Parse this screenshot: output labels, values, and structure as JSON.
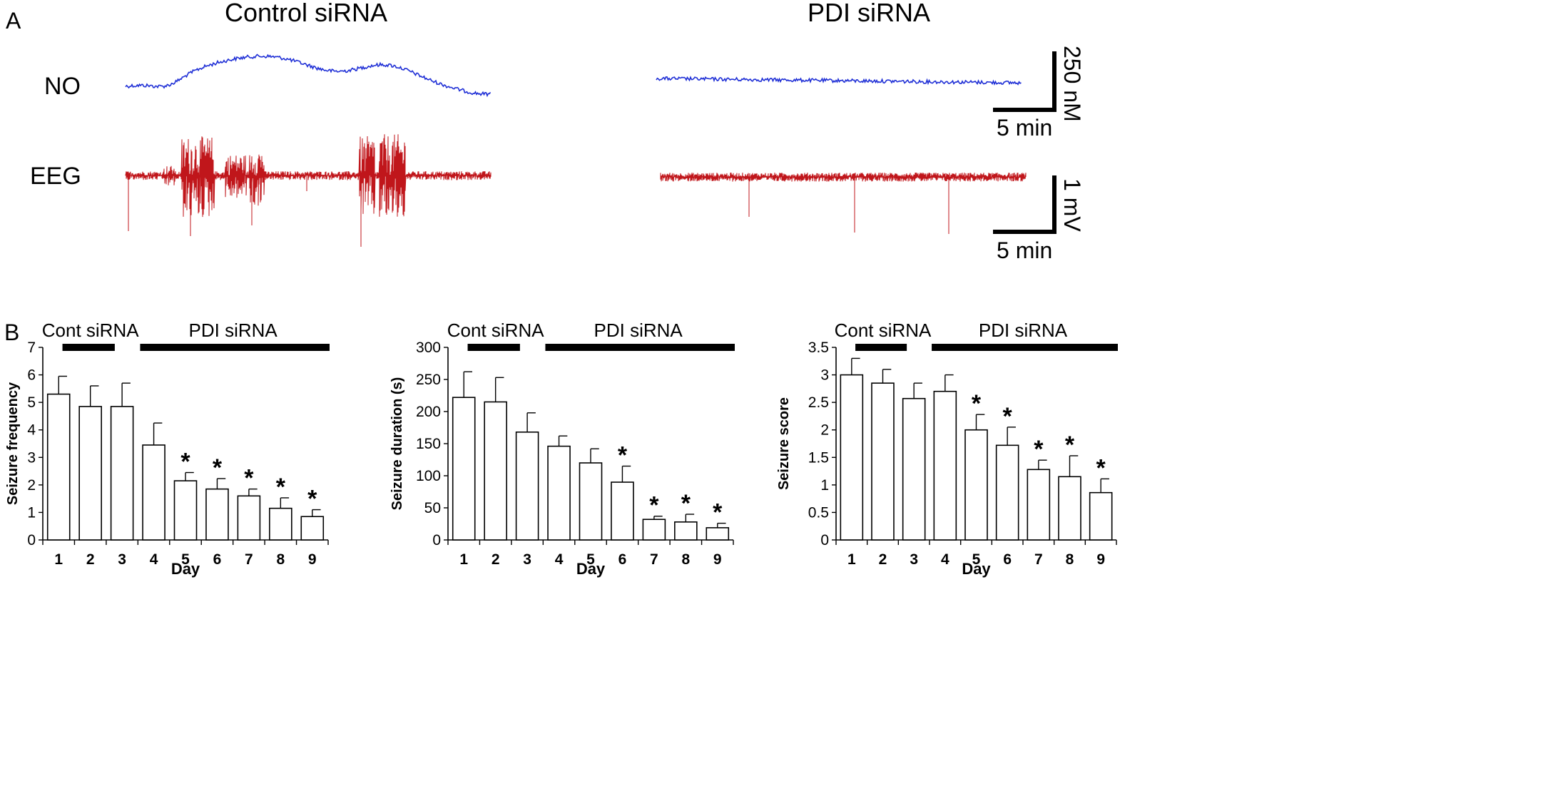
{
  "panelA": {
    "label": "A",
    "control_title": "Control siRNA",
    "pdi_title": "PDI siRNA",
    "row_no": "NO",
    "row_eeg": "EEG",
    "scale_no_y": "250 nM",
    "scale_no_x": "5 min",
    "scale_eeg_y": "1 mV",
    "scale_eeg_x": "5 min",
    "colors": {
      "no_trace": "#1f2fd6",
      "eeg_trace": "#c0161b"
    }
  },
  "panelB": {
    "label": "B",
    "cont_label": "Cont siRNA",
    "pdi_label": "PDI siRNA"
  },
  "chart_data": [
    {
      "type": "bar",
      "title": "",
      "xlabel": "Day",
      "ylabel": "Seizure frequency",
      "categories": [
        "1",
        "2",
        "3",
        "4",
        "5",
        "6",
        "7",
        "8",
        "9"
      ],
      "values": [
        5.3,
        4.85,
        4.85,
        3.45,
        2.15,
        1.85,
        1.6,
        1.15,
        0.85
      ],
      "errors": [
        0.65,
        0.75,
        0.85,
        0.8,
        0.3,
        0.38,
        0.25,
        0.38,
        0.25
      ],
      "significant": [
        false,
        false,
        false,
        false,
        true,
        true,
        true,
        true,
        true
      ],
      "ylim": [
        0,
        7
      ],
      "yticks": [
        "0",
        "1",
        "2",
        "3",
        "4",
        "5",
        "6",
        "7"
      ],
      "star": "*"
    },
    {
      "type": "bar",
      "title": "",
      "xlabel": "Day",
      "ylabel": "Seizure duration (s)",
      "categories": [
        "1",
        "2",
        "3",
        "4",
        "5",
        "6",
        "7",
        "8",
        "9"
      ],
      "values": [
        222,
        215,
        168,
        146,
        120,
        90,
        32,
        28,
        19
      ],
      "errors": [
        40,
        38,
        30,
        16,
        22,
        25,
        5,
        12,
        7
      ],
      "significant": [
        false,
        false,
        false,
        false,
        false,
        true,
        true,
        true,
        true
      ],
      "ylim": [
        0,
        300
      ],
      "yticks": [
        "0",
        "50",
        "100",
        "150",
        "200",
        "250",
        "300"
      ],
      "star": "*"
    },
    {
      "type": "bar",
      "title": "",
      "xlabel": "Day",
      "ylabel": "Seizure score",
      "categories": [
        "1",
        "2",
        "3",
        "4",
        "5",
        "6",
        "7",
        "8",
        "9"
      ],
      "values": [
        3.0,
        2.85,
        2.57,
        2.7,
        2.0,
        1.72,
        1.28,
        1.15,
        0.86
      ],
      "errors": [
        0.3,
        0.25,
        0.28,
        0.3,
        0.28,
        0.33,
        0.17,
        0.38,
        0.25
      ],
      "significant": [
        false,
        false,
        false,
        false,
        true,
        true,
        true,
        true,
        true
      ],
      "ylim": [
        0,
        3.5
      ],
      "yticks": [
        "0",
        "0.5",
        "1",
        "1.5",
        "2",
        "2.5",
        "3",
        "3.5"
      ],
      "star": "*"
    }
  ]
}
